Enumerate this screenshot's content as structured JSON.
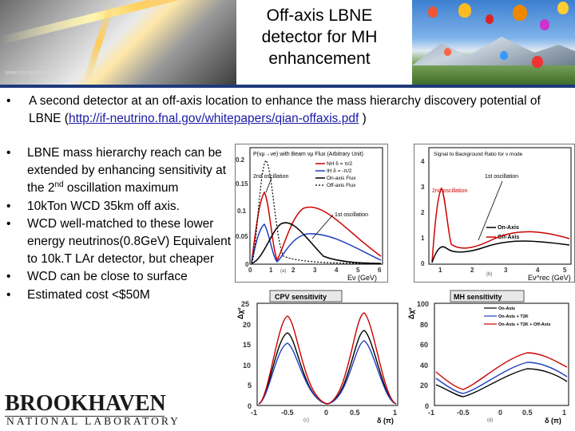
{
  "slide": {
    "title": "Off-axis LBNE detector for MH enhancement",
    "header_watermark": "www.interactions.org",
    "bullet1_text": "A second detector at an off-axis location to enhance the mass hierarchy discovery potential of LBNE (",
    "bullet1_link": "http://if-neutrino.fnal.gov/whitepapers/qian-offaxis.pdf",
    "bullet1_tail": " )",
    "bullets": [
      {
        "pre": "LBNE mass hierarchy reach can be extended by enhancing sensitivity at the 2",
        "sup": "nd",
        "post": " oscillation maximum"
      },
      {
        "pre": "10kTon WCD 35km off axis.",
        "sup": "",
        "post": ""
      },
      {
        "pre": "WCD well-matched to these lower energy neutrinos(0.8GeV) Equivalent to 10k.T LAr detector, but cheaper",
        "sup": "",
        "post": ""
      },
      {
        "pre": "WCD can be close to surface",
        "sup": "",
        "post": ""
      },
      {
        "pre": "Estimated cost <$50M",
        "sup": "",
        "post": ""
      }
    ],
    "logo_top": "BROOKHAVEN",
    "logo_bottom": "NATIONAL LABORATORY"
  },
  "plot_a": {
    "title": "P(νμ→νe) with Beam νμ Flux (Arbitrary Unit)",
    "yticks": [
      "0.2",
      "0.15",
      "0.1",
      "0.05",
      "0"
    ],
    "xticks": [
      "0",
      "1",
      "2",
      "3",
      "4",
      "5",
      "6"
    ],
    "xlabel": "Eν (GeV)",
    "panel": "(a)",
    "label_2nd": "2nd oscillation",
    "label_1st": "1st oscillation",
    "legend": [
      "NH δ = π/2",
      "IH δ = -π/2",
      "On-axis Flux",
      "Off-axis Flux"
    ]
  },
  "plot_b": {
    "title": "Signal to Background Ratio for ν mode",
    "yticks": [
      "4",
      "3",
      "2",
      "1",
      "0"
    ],
    "xticks": [
      "1",
      "2",
      "3",
      "4",
      "5"
    ],
    "xlabel": "Eν^rec (GeV)",
    "panel": "(b)",
    "label_1st": "1st oscillation",
    "label_2nd": "2nd oscillation",
    "legend": [
      "On-Axis",
      "Off-Axis"
    ]
  },
  "plot_c": {
    "title": "CPV sensitivity",
    "ylabel": "Δχ²",
    "yticks": [
      "25",
      "20",
      "15",
      "10",
      "5",
      "0"
    ],
    "xticks": [
      "-1",
      "-0.5",
      "0",
      "0.5",
      "1"
    ],
    "xlabel": "δ (π)",
    "panel": "(c)"
  },
  "plot_d": {
    "title": "MH sensitivity",
    "ylabel": "Δχ²",
    "yticks": [
      "100",
      "80",
      "60",
      "40",
      "20",
      "0"
    ],
    "xticks": [
      "-1",
      "-0.5",
      "0",
      "0.5",
      "1"
    ],
    "xlabel": "δ (π)",
    "panel": "(d)",
    "legend": [
      "On-Axis",
      "On-Axis + T2K",
      "On-Axis + T2K + Off-Axis"
    ]
  },
  "colors": {
    "accent_bar": "#1f3a7a",
    "link": "#1a1aa6",
    "on_axis": "#000000",
    "off_axis": "#cc0000",
    "nh": "#cc0000",
    "ih": "#1f3fbf"
  }
}
